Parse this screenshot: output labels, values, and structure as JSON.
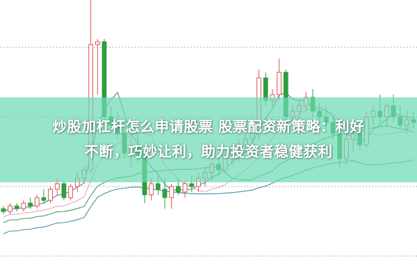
{
  "headline": {
    "line1": "炒股加杠杆怎么申请股票 股票配资新策略：利好",
    "line2": "不断，巧妙让利，助力投资者稳健获利"
  },
  "colors": {
    "up": "#d9534f",
    "down": "#2e9e3e",
    "ma_short": "#5b7c8c",
    "ma_mid": "#e2a6c6",
    "ma_long": "#3f9a66",
    "ma_longest": "#4a8fa6",
    "banner": "#6edab4",
    "grid": "#999999"
  },
  "chart_data": {
    "type": "candlestick",
    "title": "",
    "grid": true,
    "ylim": [
      0,
      100
    ],
    "moving_averages": [
      "short",
      "mid",
      "long",
      "longest"
    ],
    "candles": [
      [
        25,
        26,
        23,
        24
      ],
      [
        24,
        27,
        23,
        26
      ],
      [
        26,
        27,
        24,
        25
      ],
      [
        25,
        28,
        24,
        27
      ],
      [
        27,
        29,
        25,
        26
      ],
      [
        26,
        30,
        25,
        29
      ],
      [
        29,
        32,
        27,
        28
      ],
      [
        28,
        33,
        27,
        32
      ],
      [
        32,
        36,
        30,
        34
      ],
      [
        34,
        35,
        28,
        29
      ],
      [
        29,
        34,
        28,
        33
      ],
      [
        33,
        38,
        31,
        36
      ],
      [
        36,
        40,
        34,
        39
      ],
      [
        39,
        100,
        38,
        84
      ],
      [
        84,
        86,
        66,
        85
      ],
      [
        85,
        86,
        57,
        58
      ],
      [
        58,
        62,
        52,
        55
      ],
      [
        55,
        60,
        50,
        52
      ],
      [
        52,
        56,
        43,
        45
      ],
      [
        45,
        50,
        40,
        47
      ],
      [
        47,
        52,
        42,
        44
      ],
      [
        44,
        48,
        27,
        30
      ],
      [
        30,
        36,
        28,
        34
      ],
      [
        34,
        37,
        30,
        32
      ],
      [
        32,
        36,
        25,
        29
      ],
      [
        29,
        34,
        25,
        33
      ],
      [
        33,
        36,
        30,
        31
      ],
      [
        31,
        35,
        29,
        34
      ],
      [
        34,
        37,
        31,
        33
      ],
      [
        33,
        38,
        31,
        36
      ],
      [
        36,
        40,
        33,
        38
      ],
      [
        38,
        42,
        35,
        41
      ],
      [
        41,
        44,
        37,
        39
      ],
      [
        39,
        46,
        38,
        44
      ],
      [
        44,
        48,
        41,
        46
      ],
      [
        46,
        50,
        42,
        48
      ],
      [
        48,
        52,
        45,
        50
      ],
      [
        50,
        55,
        46,
        53
      ],
      [
        53,
        75,
        50,
        72
      ],
      [
        72,
        74,
        62,
        64
      ],
      [
        64,
        68,
        62,
        66
      ],
      [
        66,
        79,
        64,
        74
      ],
      [
        74,
        75,
        55,
        58
      ],
      [
        58,
        62,
        55,
        60
      ],
      [
        60,
        64,
        56,
        62
      ],
      [
        62,
        67,
        60,
        65
      ],
      [
        65,
        68,
        58,
        60
      ],
      [
        60,
        63,
        56,
        58
      ],
      [
        58,
        62,
        54,
        56
      ],
      [
        56,
        58,
        50,
        52
      ],
      [
        52,
        56,
        40,
        43
      ],
      [
        43,
        52,
        41,
        50
      ],
      [
        50,
        56,
        45,
        52
      ],
      [
        52,
        55,
        46,
        48
      ],
      [
        48,
        60,
        47,
        58
      ],
      [
        58,
        62,
        55,
        60
      ],
      [
        60,
        66,
        56,
        58
      ],
      [
        58,
        63,
        54,
        62
      ],
      [
        62,
        66,
        56,
        58
      ],
      [
        58,
        62,
        54,
        55
      ],
      [
        55,
        60,
        52,
        57
      ],
      [
        57,
        60,
        54,
        56
      ]
    ]
  }
}
